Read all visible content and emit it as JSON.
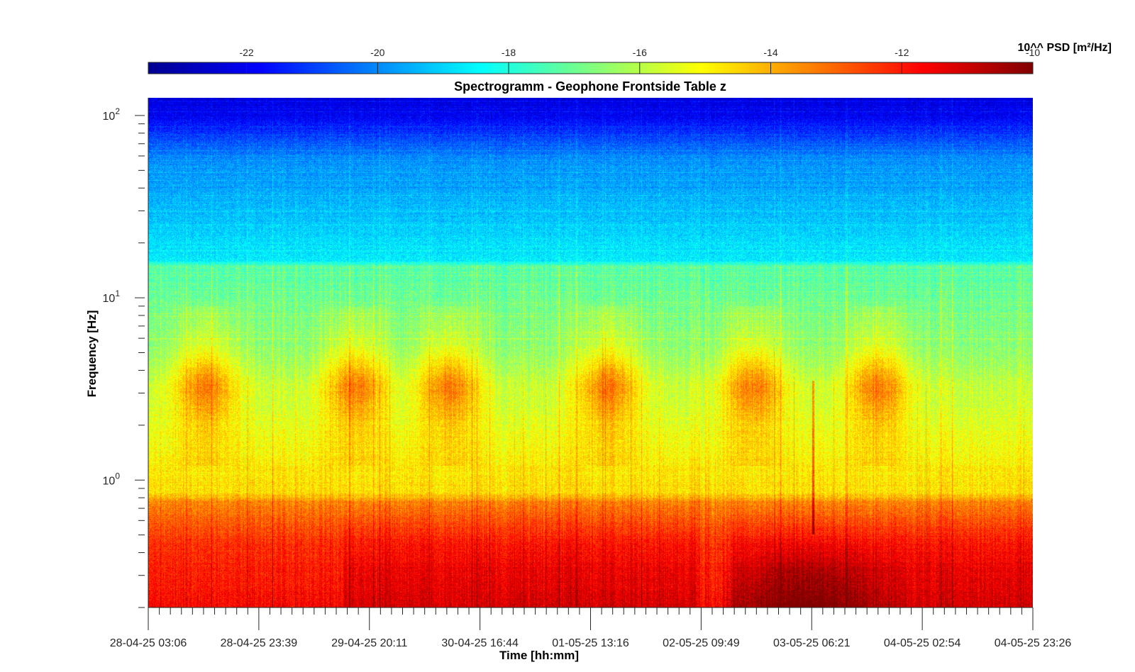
{
  "chart_data": {
    "type": "heatmap",
    "title": "Spectrogramm - Geophone Frontside Table z",
    "xlabel": "Time [hh:mm]",
    "ylabel": "Frequency [Hz]",
    "x_tick_labels": [
      "28-04-25 03:06",
      "28-04-25 23:39",
      "29-04-25 20:11",
      "30-04-25 16:44",
      "01-05-25 13:16",
      "02-05-25 09:49",
      "03-05-25 06:21",
      "04-05-25 02:54",
      "04-05-25 23:26"
    ],
    "y_scale": "log",
    "y_tick_labels": [
      {
        "base": "10",
        "exp": "0"
      },
      {
        "base": "10",
        "exp": "1"
      },
      {
        "base": "10",
        "exp": "2"
      }
    ],
    "ylim": [
      0.2,
      125
    ],
    "colorbar": {
      "label": "10^^ PSD [m²/Hz]",
      "ticks": [
        "-22",
        "-20",
        "-18",
        "-16",
        "-14",
        "-12",
        "-10"
      ],
      "range": [
        -23.5,
        -10
      ],
      "colormap": "jet"
    },
    "grid": false,
    "description_levels": {
      "high_freq_band_100Hz": -22,
      "mid_freq_band_20Hz": -19,
      "band_10Hz": -17,
      "band_3Hz_day_peaks": -14,
      "band_0.3Hz": -12,
      "peak_low_freq_03-05": -10.5
    }
  }
}
